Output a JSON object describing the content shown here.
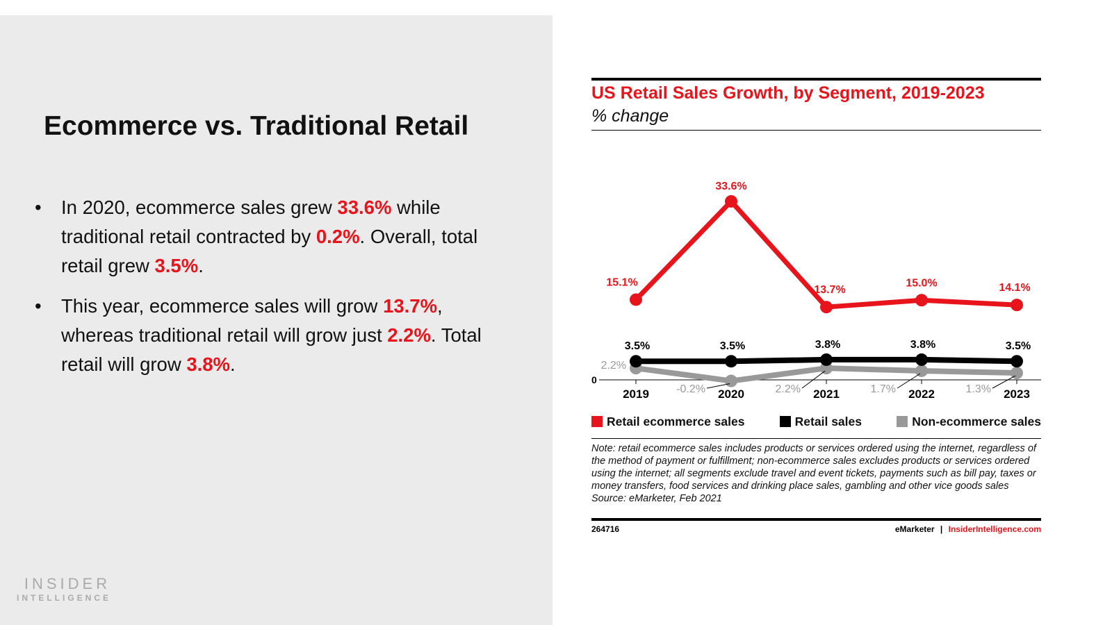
{
  "left": {
    "heading": "Ecommerce vs. Traditional Retail",
    "bullets": [
      {
        "parts": [
          "In 2020, ecommerce sales grew ",
          "33.6%",
          " while traditional retail contracted by ",
          "0.2%",
          ". Overall, total retail grew ",
          "3.5%",
          "."
        ]
      },
      {
        "parts": [
          "This year, ecommerce sales will grow ",
          "13.7%",
          ", whereas traditional retail will grow just ",
          "2.2%",
          ". Total retail will grow ",
          "3.8%",
          "."
        ]
      }
    ],
    "bullet_char": "•",
    "logo": {
      "line1": "INSIDER",
      "line2": "INTELLIGENCE"
    }
  },
  "chart_data": {
    "type": "line",
    "title": "US Retail Sales Growth, by Segment, 2019-2023",
    "subtitle": "% change",
    "categories": [
      "2019",
      "2020",
      "2021",
      "2022",
      "2023"
    ],
    "y_zero_label": "0",
    "series": [
      {
        "name": "Retail ecommerce sales",
        "color": "#e8141c",
        "values": [
          15.1,
          33.6,
          13.7,
          15.0,
          14.1
        ],
        "labels": [
          "15.1%",
          "33.6%",
          "13.7%",
          "15.0%",
          "14.1%"
        ]
      },
      {
        "name": "Retail sales",
        "color": "#000000",
        "values": [
          3.5,
          3.5,
          3.8,
          3.8,
          3.5
        ],
        "labels": [
          "3.5%",
          "3.5%",
          "3.8%",
          "3.8%",
          "3.5%"
        ]
      },
      {
        "name": "Non-ecommerce sales",
        "color": "#999999",
        "values": [
          2.2,
          -0.2,
          2.2,
          1.7,
          1.3
        ],
        "labels": [
          "2.2%",
          "-0.2%",
          "2.2%",
          "1.7%",
          "1.3%"
        ]
      }
    ],
    "legend_position": "bottom",
    "grid": false,
    "note": "Note: retail ecommerce sales includes products or services ordered using the internet, regardless of the method of payment or fulfillment; non-ecommerce sales excludes products or services ordered using the internet; all segments exclude travel and event tickets, payments such as bill pay, taxes or money transfers, food services and drinking place sales, gambling and other vice goods sales",
    "source": "Source: eMarketer, Feb 2021",
    "chart_id": "264716",
    "brand": "eMarketer",
    "separator": "|",
    "brand_url": "InsiderIntelligence.com"
  }
}
